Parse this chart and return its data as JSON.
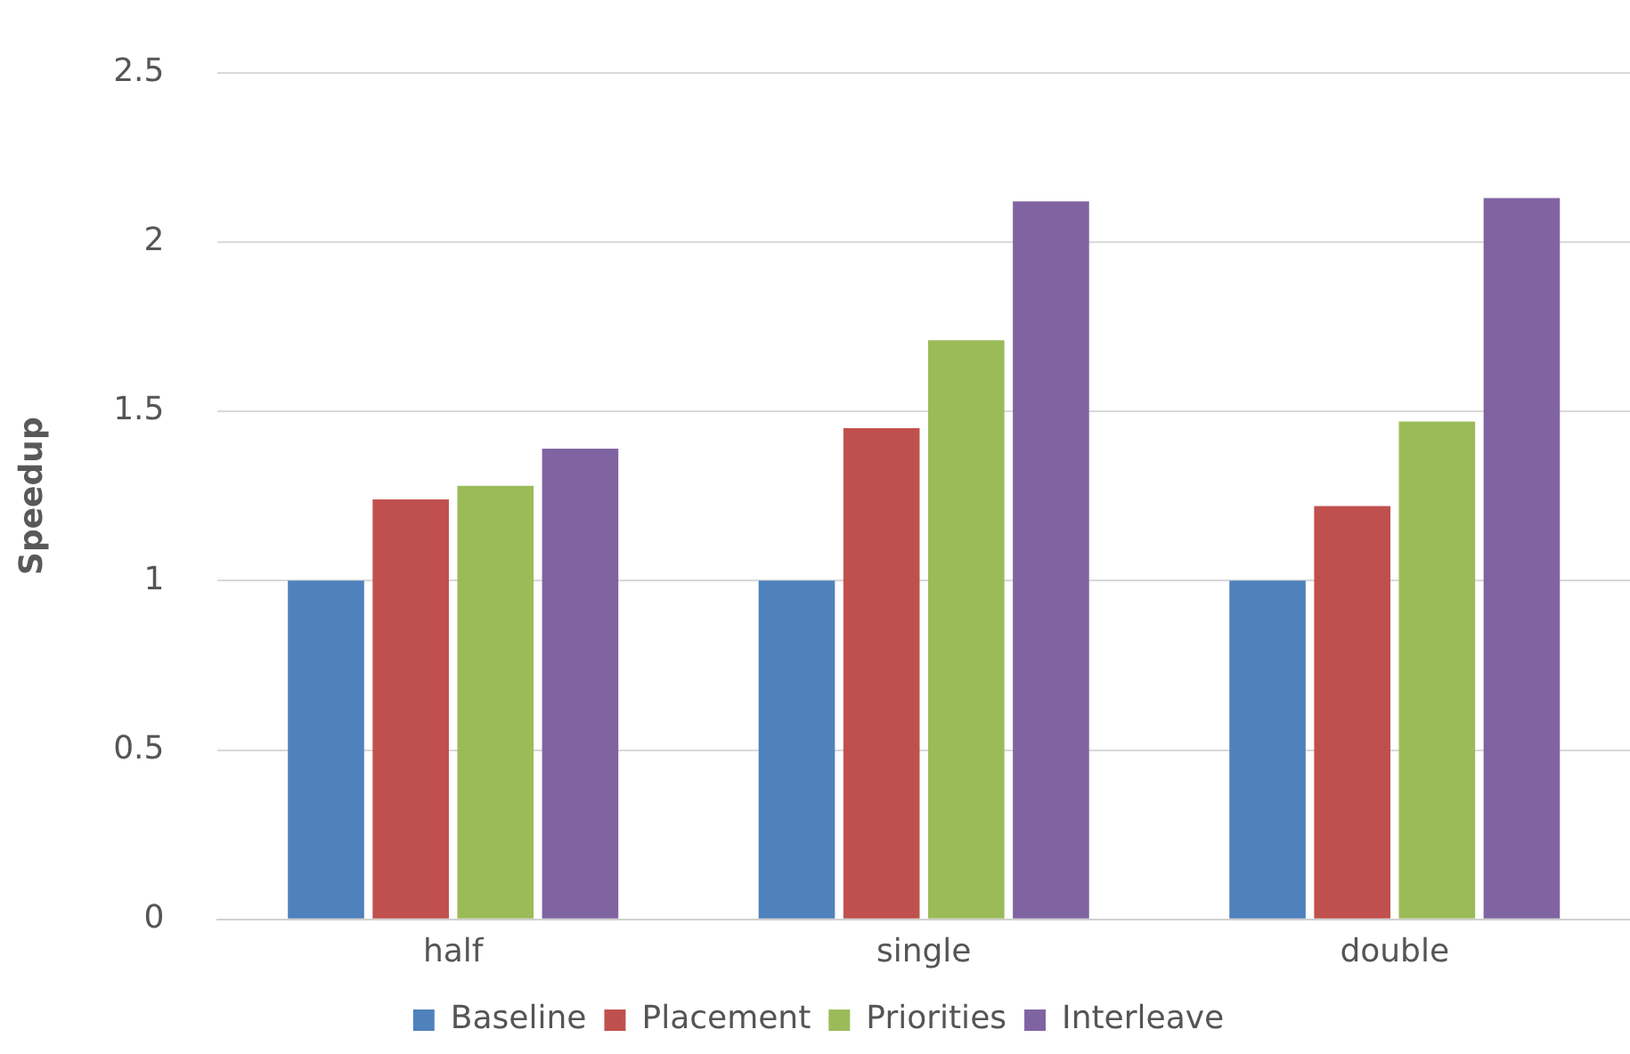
{
  "chart_data": {
    "type": "bar",
    "ylabel": "Speedup",
    "categories": [
      "half",
      "single",
      "double"
    ],
    "series": [
      {
        "name": "Baseline",
        "color": "#4f81bd",
        "values": [
          1,
          1,
          1
        ]
      },
      {
        "name": "Placement",
        "color": "#c0504d",
        "values": [
          1.24,
          1.45,
          1.22
        ]
      },
      {
        "name": "Priorities",
        "color": "#9bbb59",
        "values": [
          1.28,
          1.71,
          1.47
        ]
      },
      {
        "name": "Interleave",
        "color": "#8064a2",
        "values": [
          1.39,
          2.12,
          2.13
        ]
      }
    ],
    "ylim": [
      0,
      2.5
    ],
    "yticks": [
      0,
      0.5,
      1,
      1.5,
      2,
      2.5
    ],
    "grid": "y",
    "legend": "bottom"
  }
}
